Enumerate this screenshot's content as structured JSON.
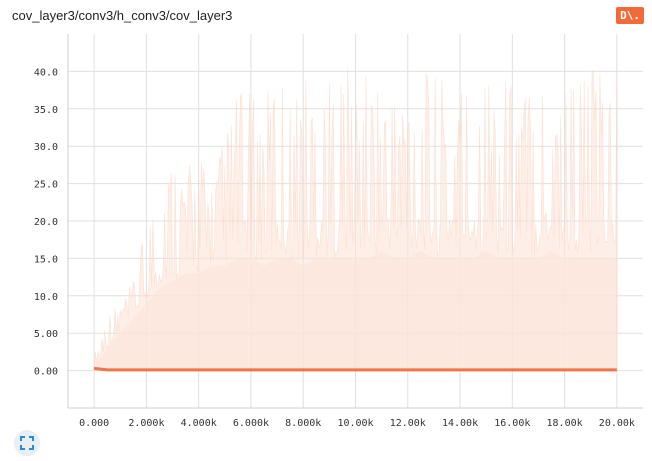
{
  "header": {
    "title": "cov_layer3/conv3/h_conv3/cov_layer3",
    "badge_label": "D\\."
  },
  "colors": {
    "series": "#f27548",
    "range_fill": "#fde4d8",
    "badge_bg": "#f4693a",
    "grid": "#e0e0e0"
  },
  "icons": {
    "expand": "fullscreen-expand-icon"
  },
  "chart_data": {
    "type": "area",
    "grid": true,
    "xlim": [
      -1000,
      21000
    ],
    "ylim": [
      -5,
      45
    ],
    "x_ticks": [
      {
        "value": 0,
        "label": "0.000"
      },
      {
        "value": 2000,
        "label": "2.000k"
      },
      {
        "value": 4000,
        "label": "4.000k"
      },
      {
        "value": 6000,
        "label": "6.000k"
      },
      {
        "value": 8000,
        "label": "8.000k"
      },
      {
        "value": 10000,
        "label": "10.00k"
      },
      {
        "value": 12000,
        "label": "12.00k"
      },
      {
        "value": 14000,
        "label": "14.00k"
      },
      {
        "value": 16000,
        "label": "16.00k"
      },
      {
        "value": 18000,
        "label": "18.00k"
      },
      {
        "value": 20000,
        "label": "20.00k"
      }
    ],
    "y_ticks": [
      {
        "value": 0,
        "label": "0.00"
      },
      {
        "value": 5,
        "label": "5.00"
      },
      {
        "value": 10,
        "label": "10.0"
      },
      {
        "value": 15,
        "label": "15.0"
      },
      {
        "value": 20,
        "label": "20.0"
      },
      {
        "value": 25,
        "label": "25.0"
      },
      {
        "value": 30,
        "label": "30.0"
      },
      {
        "value": 35,
        "label": "35.0"
      },
      {
        "value": 40,
        "label": "40.0"
      }
    ],
    "series": [
      {
        "x": [
          0,
          500,
          1000,
          1500,
          2000,
          2500,
          3000,
          3500,
          4000,
          4500,
          5000,
          5500,
          6000,
          6500,
          7000,
          7500,
          8000,
          8500,
          9000,
          9500,
          10000,
          10500,
          11000,
          11500,
          12000,
          12500,
          13000,
          13500,
          14000,
          14500,
          15000,
          15500,
          16000,
          16500,
          17000,
          17500,
          18000,
          18500,
          19000,
          19500,
          20000
        ],
        "y": [
          0.3,
          0.1,
          0.1,
          0.1,
          0.1,
          0.1,
          0.1,
          0.1,
          0.1,
          0.1,
          0.1,
          0.1,
          0.1,
          0.1,
          0.1,
          0.1,
          0.1,
          0.1,
          0.1,
          0.1,
          0.1,
          0.1,
          0.1,
          0.1,
          0.1,
          0.1,
          0.1,
          0.1,
          0.1,
          0.1,
          0.1,
          0.1,
          0.1,
          0.1,
          0.1,
          0.1,
          0.1,
          0.1,
          0.1,
          0.1,
          0.1
        ],
        "range_high": [
          2,
          8,
          9,
          12,
          20,
          26,
          30,
          27,
          30,
          26,
          32,
          38,
          37,
          36,
          42,
          37,
          41,
          40,
          39,
          42,
          40,
          40,
          40,
          39,
          41,
          40,
          40,
          39,
          40,
          40,
          41,
          40,
          40,
          39,
          41,
          40,
          41,
          41,
          41,
          40,
          41
        ],
        "range_base": [
          0.5,
          3,
          5,
          7,
          9,
          11,
          12,
          13,
          13,
          14,
          14,
          15,
          15,
          14,
          15,
          15,
          14,
          15,
          15,
          15,
          15,
          15,
          16,
          15,
          15,
          16,
          15,
          15,
          15,
          15,
          16,
          15,
          15,
          15,
          15,
          16,
          15,
          15,
          15,
          15,
          15
        ]
      }
    ]
  }
}
